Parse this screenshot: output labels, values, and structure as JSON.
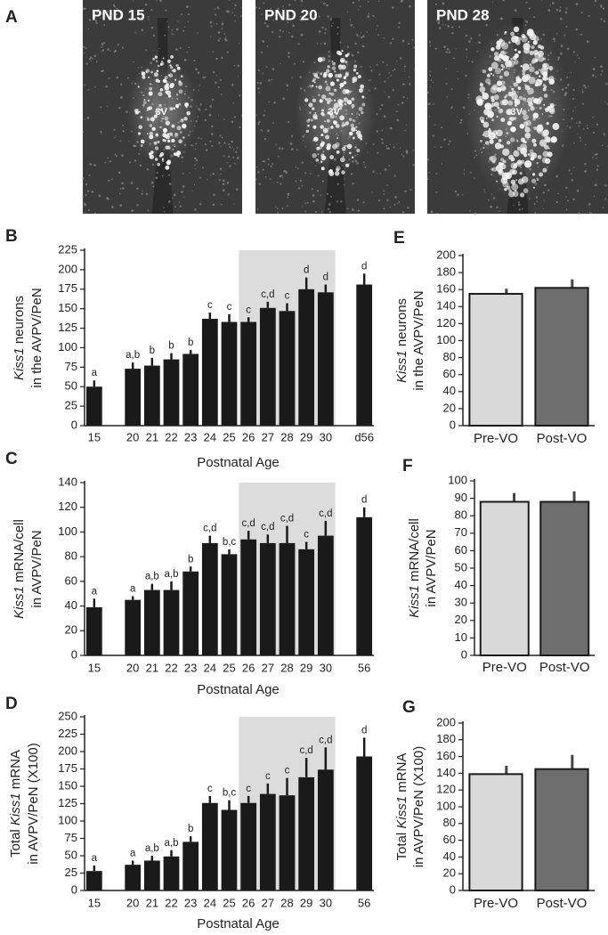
{
  "image_panel": {
    "label": "A",
    "images": [
      {
        "title": "PND 15",
        "marker": "3V"
      },
      {
        "title": "PND 20",
        "marker": "3V"
      },
      {
        "title": "PND 28",
        "marker": "3V"
      }
    ]
  },
  "chart_data": [
    {
      "type": "bar",
      "panel": "B",
      "categories": [
        "15",
        "20",
        "21",
        "22",
        "23",
        "24",
        "25",
        "26",
        "27",
        "28",
        "29",
        "30",
        "d56"
      ],
      "values": [
        50,
        73,
        77,
        85,
        92,
        137,
        133,
        133,
        151,
        147,
        175,
        171,
        181
      ],
      "errors": [
        8,
        8,
        10,
        8,
        5,
        8,
        10,
        6,
        8,
        10,
        15,
        10,
        14
      ],
      "significance": [
        "a",
        "a,b",
        "b",
        "b",
        "b",
        "c",
        "c",
        "c",
        "c,d",
        "c",
        "d",
        "d",
        "d"
      ],
      "color": "#1a1a1a",
      "shaded_categories": [
        "26",
        "30"
      ],
      "ylim": [
        0,
        225
      ],
      "yticks": [
        0,
        25,
        50,
        75,
        100,
        125,
        150,
        175,
        200,
        225
      ],
      "y_label": [
        [
          {
            "text": "Kiss1",
            "italic": true
          },
          {
            "text": " neurons"
          }
        ],
        [
          {
            "text": "in the AVPV/PeN"
          }
        ]
      ],
      "x_label": "Postnatal Age"
    },
    {
      "type": "bar",
      "panel": "C",
      "categories": [
        "15",
        "20",
        "21",
        "22",
        "23",
        "24",
        "25",
        "26",
        "27",
        "28",
        "29",
        "30",
        "56"
      ],
      "values": [
        39,
        45,
        53,
        53,
        68,
        91,
        82,
        94,
        91,
        91,
        86,
        97,
        112
      ],
      "errors": [
        7,
        3,
        5,
        7,
        4,
        6,
        4,
        7,
        7,
        14,
        6,
        12,
        8
      ],
      "significance": [
        "a",
        "a",
        "a,b",
        "a,b",
        "b",
        "c,d",
        "b,c",
        "c,d",
        "c,d",
        "c,d",
        "c",
        "c,d",
        "d"
      ],
      "color": "#1a1a1a",
      "shaded_categories": [
        "26",
        "30"
      ],
      "ylim": [
        0,
        140
      ],
      "yticks": [
        0,
        20,
        40,
        60,
        80,
        100,
        120,
        140
      ],
      "y_label": [
        [
          {
            "text": "Kiss1",
            "italic": true
          },
          {
            "text": " mRNA/cell"
          }
        ],
        [
          {
            "text": "in AVPV/PeN"
          }
        ]
      ],
      "x_label": "Postnatal Age"
    },
    {
      "type": "bar",
      "panel": "D",
      "categories": [
        "15",
        "20",
        "21",
        "22",
        "23",
        "24",
        "25",
        "26",
        "27",
        "28",
        "29",
        "30",
        "56"
      ],
      "values": [
        28,
        37,
        43,
        49,
        70,
        126,
        116,
        126,
        139,
        137,
        163,
        174,
        193
      ],
      "errors": [
        8,
        6,
        7,
        9,
        8,
        10,
        14,
        10,
        15,
        25,
        28,
        32,
        27
      ],
      "significance": [
        "a",
        "a",
        "a,b",
        "a,b",
        "b",
        "c",
        "b,c",
        "c",
        "c",
        "c",
        "c,d",
        "c,d",
        "d"
      ],
      "color": "#1a1a1a",
      "shaded_categories": [
        "26",
        "30"
      ],
      "ylim": [
        0,
        250
      ],
      "yticks": [
        0,
        25,
        50,
        75,
        100,
        125,
        150,
        175,
        200,
        225,
        250
      ],
      "y_label": [
        [
          {
            "text": "Total "
          },
          {
            "text": "Kiss1",
            "italic": true
          },
          {
            "text": " mRNA"
          }
        ],
        [
          {
            "text": "in AVPV/PeN (X100)"
          }
        ]
      ],
      "x_label": "Postnatal Age"
    },
    {
      "type": "bar",
      "panel": "E",
      "categories": [
        "Pre-VO",
        "Post-VO"
      ],
      "values": [
        155,
        162
      ],
      "errors": [
        6,
        10
      ],
      "colors": [
        "#d9d9d9",
        "#6e6e6e"
      ],
      "ylim": [
        0,
        200
      ],
      "yticks": [
        0,
        20,
        40,
        60,
        80,
        100,
        120,
        140,
        160,
        180,
        200
      ],
      "y_label": [
        [
          {
            "text": "Kiss1",
            "italic": true
          },
          {
            "text": " neurons"
          }
        ],
        [
          {
            "text": "in the AVPV/PeN"
          }
        ]
      ]
    },
    {
      "type": "bar",
      "panel": "F",
      "categories": [
        "Pre-VO",
        "Post-VO"
      ],
      "values": [
        88,
        88
      ],
      "errors": [
        5,
        6
      ],
      "colors": [
        "#d9d9d9",
        "#6e6e6e"
      ],
      "ylim": [
        0,
        100
      ],
      "yticks": [
        0,
        10,
        20,
        30,
        40,
        50,
        60,
        70,
        80,
        90,
        100
      ],
      "y_label": [
        [
          {
            "text": "Kiss1",
            "italic": true
          },
          {
            "text": " mRNA/cell"
          }
        ],
        [
          {
            "text": "in AVPV/PeN"
          }
        ]
      ]
    },
    {
      "type": "bar",
      "panel": "G",
      "categories": [
        "Pre-VO",
        "Post-VO"
      ],
      "values": [
        139,
        145
      ],
      "errors": [
        10,
        17
      ],
      "colors": [
        "#d9d9d9",
        "#6e6e6e"
      ],
      "ylim": [
        0,
        200
      ],
      "yticks": [
        0,
        20,
        40,
        60,
        80,
        100,
        120,
        140,
        160,
        180,
        200
      ],
      "y_label": [
        [
          {
            "text": "Total "
          },
          {
            "text": "Kiss1",
            "italic": true
          },
          {
            "text": " mRNA"
          }
        ],
        [
          {
            "text": "in AVPV/PeN (X100)"
          }
        ]
      ]
    }
  ]
}
